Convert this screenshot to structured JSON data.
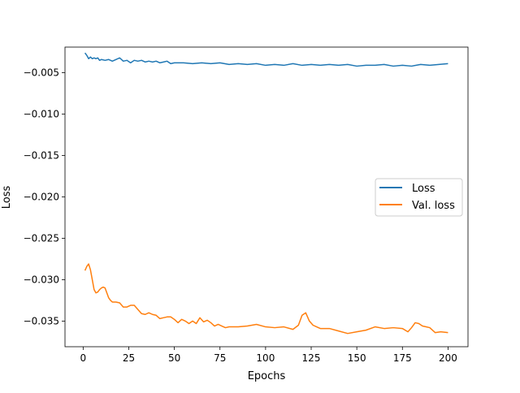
{
  "chart_data": {
    "type": "line",
    "title": "",
    "xlabel": "Epochs",
    "ylabel": "Loss",
    "xlim": [
      -9.95,
      210.95
    ],
    "ylim": [
      -0.0381,
      -0.0019
    ],
    "xticks": [
      0,
      25,
      50,
      75,
      100,
      125,
      150,
      175,
      200
    ],
    "xtick_labels": [
      "0",
      "25",
      "50",
      "75",
      "100",
      "125",
      "150",
      "175",
      "200"
    ],
    "yticks": [
      -0.035,
      -0.03,
      -0.025,
      -0.02,
      -0.015,
      -0.01,
      -0.005
    ],
    "ytick_labels": [
      "−0.035",
      "−0.030",
      "−0.025",
      "−0.020",
      "−0.015",
      "−0.010",
      "−0.005"
    ],
    "grid": false,
    "legend_position": "center-right",
    "series": [
      {
        "name": "Loss",
        "color": "#1f77b4",
        "x": [
          1,
          2,
          3,
          4,
          5,
          6,
          7,
          8,
          9,
          10,
          12,
          14,
          16,
          18,
          20,
          22,
          24,
          26,
          28,
          30,
          32,
          34,
          36,
          38,
          40,
          42,
          44,
          46,
          48,
          50,
          55,
          60,
          65,
          70,
          75,
          80,
          85,
          90,
          95,
          100,
          105,
          110,
          115,
          120,
          125,
          130,
          135,
          140,
          145,
          150,
          155,
          160,
          165,
          170,
          175,
          180,
          185,
          190,
          195,
          200
        ],
        "values": [
          -0.0026,
          -0.0029,
          -0.0033,
          -0.0031,
          -0.0033,
          -0.0032,
          -0.0033,
          -0.0032,
          -0.0035,
          -0.0034,
          -0.0035,
          -0.0034,
          -0.0036,
          -0.0034,
          -0.0032,
          -0.0036,
          -0.0035,
          -0.0038,
          -0.0035,
          -0.0036,
          -0.0035,
          -0.0037,
          -0.0036,
          -0.0037,
          -0.0036,
          -0.0038,
          -0.0037,
          -0.0036,
          -0.0039,
          -0.0038,
          -0.0038,
          -0.0039,
          -0.0038,
          -0.0039,
          -0.0038,
          -0.004,
          -0.0039,
          -0.004,
          -0.0039,
          -0.0041,
          -0.004,
          -0.0041,
          -0.0039,
          -0.0041,
          -0.004,
          -0.0041,
          -0.004,
          -0.0041,
          -0.004,
          -0.0042,
          -0.0041,
          -0.0041,
          -0.004,
          -0.0042,
          -0.0041,
          -0.0042,
          -0.004,
          -0.0041,
          -0.004,
          -0.0039
        ]
      },
      {
        "name": "Val. loss",
        "color": "#ff7f0e",
        "x": [
          1,
          2,
          3,
          4,
          5,
          6,
          7,
          8,
          9,
          10,
          11,
          12,
          13,
          14,
          15,
          16,
          18,
          20,
          22,
          24,
          26,
          28,
          30,
          32,
          34,
          36,
          38,
          40,
          42,
          44,
          46,
          48,
          50,
          52,
          54,
          56,
          58,
          60,
          62,
          64,
          66,
          68,
          70,
          72,
          74,
          76,
          78,
          80,
          85,
          90,
          95,
          100,
          105,
          110,
          115,
          118,
          120,
          122,
          124,
          126,
          128,
          130,
          135,
          140,
          145,
          150,
          155,
          160,
          165,
          170,
          175,
          178,
          180,
          182,
          184,
          186,
          188,
          190,
          193,
          196,
          200
        ],
        "values": [
          -0.0289,
          -0.0284,
          -0.0281,
          -0.0288,
          -0.03,
          -0.0312,
          -0.0316,
          -0.0315,
          -0.0312,
          -0.031,
          -0.0309,
          -0.031,
          -0.0316,
          -0.0322,
          -0.0325,
          -0.0327,
          -0.0327,
          -0.0328,
          -0.0333,
          -0.0333,
          -0.0331,
          -0.0331,
          -0.0336,
          -0.0341,
          -0.0342,
          -0.034,
          -0.0342,
          -0.0343,
          -0.0347,
          -0.0346,
          -0.0345,
          -0.0345,
          -0.0348,
          -0.0352,
          -0.0348,
          -0.035,
          -0.0353,
          -0.035,
          -0.0353,
          -0.0346,
          -0.0351,
          -0.0349,
          -0.0352,
          -0.0356,
          -0.0354,
          -0.0356,
          -0.0358,
          -0.0357,
          -0.0357,
          -0.0356,
          -0.0354,
          -0.0357,
          -0.0358,
          -0.0357,
          -0.036,
          -0.0355,
          -0.0343,
          -0.034,
          -0.035,
          -0.0355,
          -0.0357,
          -0.0359,
          -0.0359,
          -0.0362,
          -0.0365,
          -0.0363,
          -0.0361,
          -0.0357,
          -0.0359,
          -0.0358,
          -0.0359,
          -0.0363,
          -0.0358,
          -0.0352,
          -0.0353,
          -0.0356,
          -0.0357,
          -0.0358,
          -0.0364,
          -0.0363,
          -0.0364
        ]
      }
    ]
  }
}
